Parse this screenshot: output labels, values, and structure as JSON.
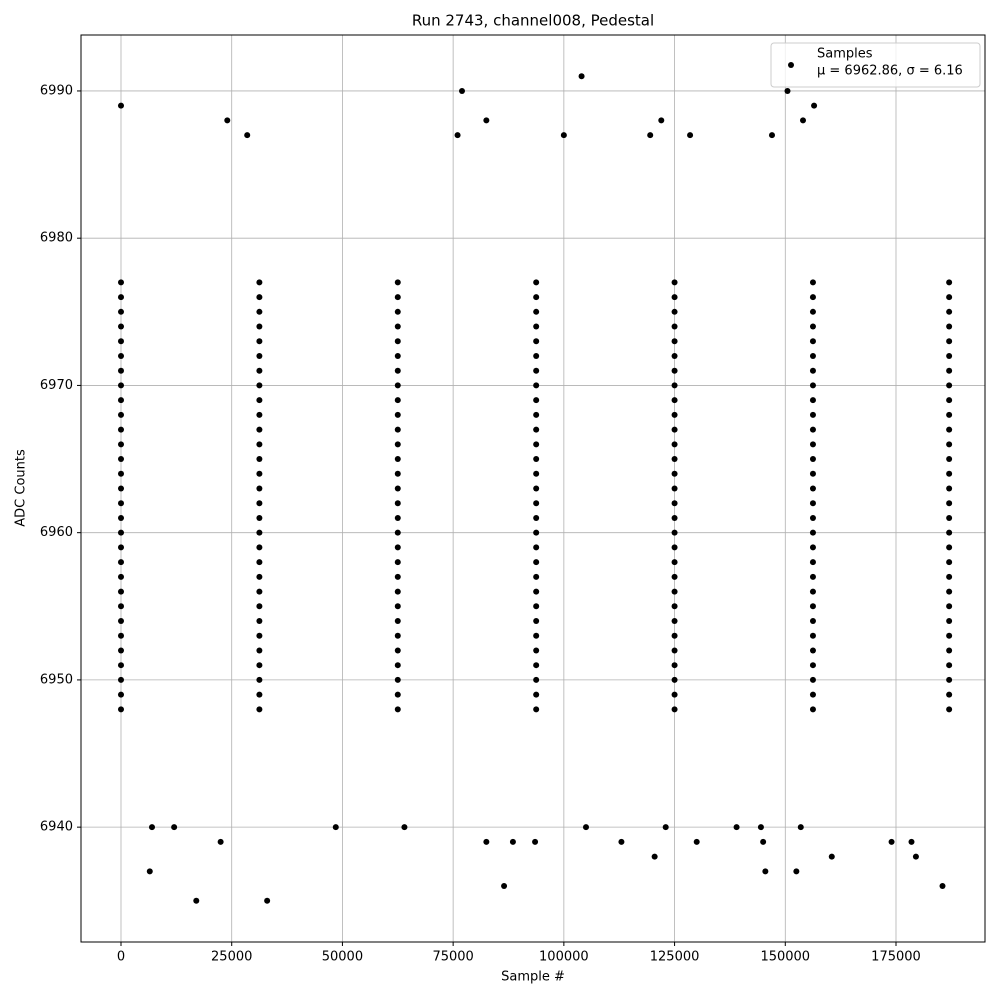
{
  "chart_data": {
    "type": "scatter",
    "title": "Run 2743, channel008, Pedestal",
    "x_label": "Sample #",
    "y_label": "ADC Counts",
    "xlim": [
      -9032,
      195097
    ],
    "ylim": [
      6932.2,
      6993.8
    ],
    "xticks": [
      0,
      25000,
      50000,
      75000,
      100000,
      125000,
      150000,
      175000
    ],
    "yticks": [
      6940,
      6950,
      6960,
      6970,
      6980,
      6990
    ],
    "grid": true,
    "legend_position": "upper right",
    "legend_note": "μ = 6962.86, σ = 6.16",
    "series": [
      {
        "name": "Samples",
        "color": "#000000",
        "x": [
          0,
          77000,
          104000,
          150500,
          156500,
          24000,
          82500,
          122000,
          154000,
          6500,
          17000,
          33000,
          86500,
          185500,
          120500,
          160500,
          179500,
          22500,
          82500,
          88500,
          93500,
          113000,
          130000,
          145000,
          174000,
          178500,
          145500,
          152500,
          7000,
          12000,
          48500,
          64000,
          105000,
          139000,
          144500,
          153500,
          123000,
          28500,
          76000,
          128500,
          119500,
          147000,
          100000,
          0,
          31250,
          62500,
          93750,
          125000,
          156250,
          187000,
          0,
          31250,
          62500,
          93750,
          125000,
          156250,
          187000,
          0,
          31250,
          62500,
          93750,
          125000,
          156250,
          187000,
          0,
          31250,
          62500,
          93750,
          125000,
          156250,
          187000,
          0,
          31250,
          62500,
          93750,
          125000,
          156250,
          187000,
          0,
          31250,
          62500,
          93750,
          125000,
          156250,
          187000,
          0,
          31250,
          62500,
          93750,
          125000,
          156250,
          187000,
          0,
          31250,
          62500,
          93750,
          125000,
          156250,
          187000,
          0,
          31250,
          62500,
          93750,
          125000,
          156250,
          187000,
          0,
          31250,
          62500,
          93750,
          125000,
          156250,
          187000,
          0,
          31250,
          62500,
          93750,
          125000,
          156250,
          187000,
          0,
          31250,
          62500,
          93750,
          125000,
          156250,
          187000,
          0,
          31250,
          62500,
          93750,
          125000,
          156250,
          187000,
          0,
          31250,
          62500,
          93750,
          125000,
          156250,
          187000,
          0,
          31250,
          62500,
          93750,
          125000,
          156250,
          187000,
          0,
          31250,
          62500,
          93750,
          125000,
          156250,
          187000,
          0,
          31250,
          62500,
          93750,
          125000,
          156250,
          187000,
          0,
          31250,
          62500,
          93750,
          125000,
          156250,
          187000,
          0,
          31250,
          62500,
          93750,
          125000,
          156250,
          187000,
          0,
          31250,
          62500,
          93750,
          125000,
          156250,
          187000,
          0,
          31250,
          62500,
          93750,
          125000,
          156250,
          187000,
          0,
          31250,
          62500,
          93750,
          125000,
          156250,
          187000,
          0,
          31250,
          62500,
          93750,
          125000,
          156250,
          187000,
          0,
          31250,
          62500,
          93750,
          125000,
          156250,
          187000,
          0,
          31250,
          62500,
          93750,
          125000,
          156250,
          187000,
          0,
          31250,
          62500,
          93750,
          125000,
          156250,
          187000,
          0,
          31250,
          62500,
          93750,
          125000,
          156250,
          187000,
          0,
          31250,
          62500,
          93750,
          125000,
          156250,
          187000,
          0,
          31250,
          62500,
          93750,
          125000,
          156250,
          187000,
          0,
          31250,
          62500,
          93750,
          125000,
          156250,
          187000
        ],
        "values": [
          6989,
          6990,
          6991,
          6990,
          6989,
          6988,
          6988,
          6988,
          6988,
          6937,
          6935,
          6935,
          6936,
          6936,
          6938,
          6938,
          6938,
          6939,
          6939,
          6939,
          6939,
          6939,
          6939,
          6939,
          6939,
          6939,
          6937,
          6937,
          6940,
          6940,
          6940,
          6940,
          6940,
          6940,
          6940,
          6940,
          6940,
          6987,
          6987,
          6987,
          6987,
          6987,
          6987,
          6948,
          6948,
          6948,
          6948,
          6948,
          6948,
          6948,
          6949,
          6949,
          6949,
          6949,
          6949,
          6949,
          6949,
          6950,
          6950,
          6950,
          6950,
          6950,
          6950,
          6950,
          6951,
          6951,
          6951,
          6951,
          6951,
          6951,
          6951,
          6952,
          6952,
          6952,
          6952,
          6952,
          6952,
          6952,
          6953,
          6953,
          6953,
          6953,
          6953,
          6953,
          6953,
          6954,
          6954,
          6954,
          6954,
          6954,
          6954,
          6954,
          6955,
          6955,
          6955,
          6955,
          6955,
          6955,
          6955,
          6956,
          6956,
          6956,
          6956,
          6956,
          6956,
          6956,
          6957,
          6957,
          6957,
          6957,
          6957,
          6957,
          6957,
          6958,
          6958,
          6958,
          6958,
          6958,
          6958,
          6958,
          6959,
          6959,
          6959,
          6959,
          6959,
          6959,
          6959,
          6960,
          6960,
          6960,
          6960,
          6960,
          6960,
          6960,
          6961,
          6961,
          6961,
          6961,
          6961,
          6961,
          6961,
          6962,
          6962,
          6962,
          6962,
          6962,
          6962,
          6962,
          6963,
          6963,
          6963,
          6963,
          6963,
          6963,
          6963,
          6964,
          6964,
          6964,
          6964,
          6964,
          6964,
          6964,
          6965,
          6965,
          6965,
          6965,
          6965,
          6965,
          6965,
          6966,
          6966,
          6966,
          6966,
          6966,
          6966,
          6966,
          6967,
          6967,
          6967,
          6967,
          6967,
          6967,
          6967,
          6968,
          6968,
          6968,
          6968,
          6968,
          6968,
          6968,
          6969,
          6969,
          6969,
          6969,
          6969,
          6969,
          6969,
          6970,
          6970,
          6970,
          6970,
          6970,
          6970,
          6970,
          6971,
          6971,
          6971,
          6971,
          6971,
          6971,
          6971,
          6972,
          6972,
          6972,
          6972,
          6972,
          6972,
          6972,
          6973,
          6973,
          6973,
          6973,
          6973,
          6973,
          6973,
          6974,
          6974,
          6974,
          6974,
          6974,
          6974,
          6974,
          6975,
          6975,
          6975,
          6975,
          6975,
          6975,
          6975,
          6976,
          6976,
          6976,
          6976,
          6976,
          6976,
          6976,
          6977,
          6977,
          6977,
          6977,
          6977,
          6977,
          6977
        ]
      }
    ]
  }
}
